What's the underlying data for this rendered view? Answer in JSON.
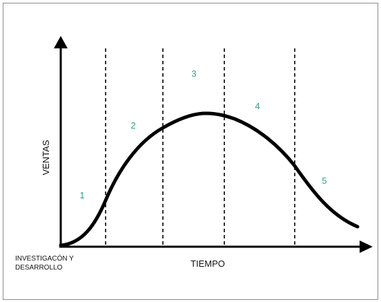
{
  "diagram": {
    "y_axis_label": "VENTAS",
    "x_axis_label": "TIEMPO",
    "origin_label_line1": "INVESTIGACÓN Y",
    "origin_label_line2": "DESARROLLO",
    "stages": [
      "1",
      "2",
      "3",
      "4",
      "5"
    ],
    "curve_description": "",
    "colors": {
      "axis": "#000000",
      "curve": "#000000",
      "divider": "#000000",
      "stage_number": "#2aa58a",
      "frame": "#8c8c8c"
    }
  }
}
